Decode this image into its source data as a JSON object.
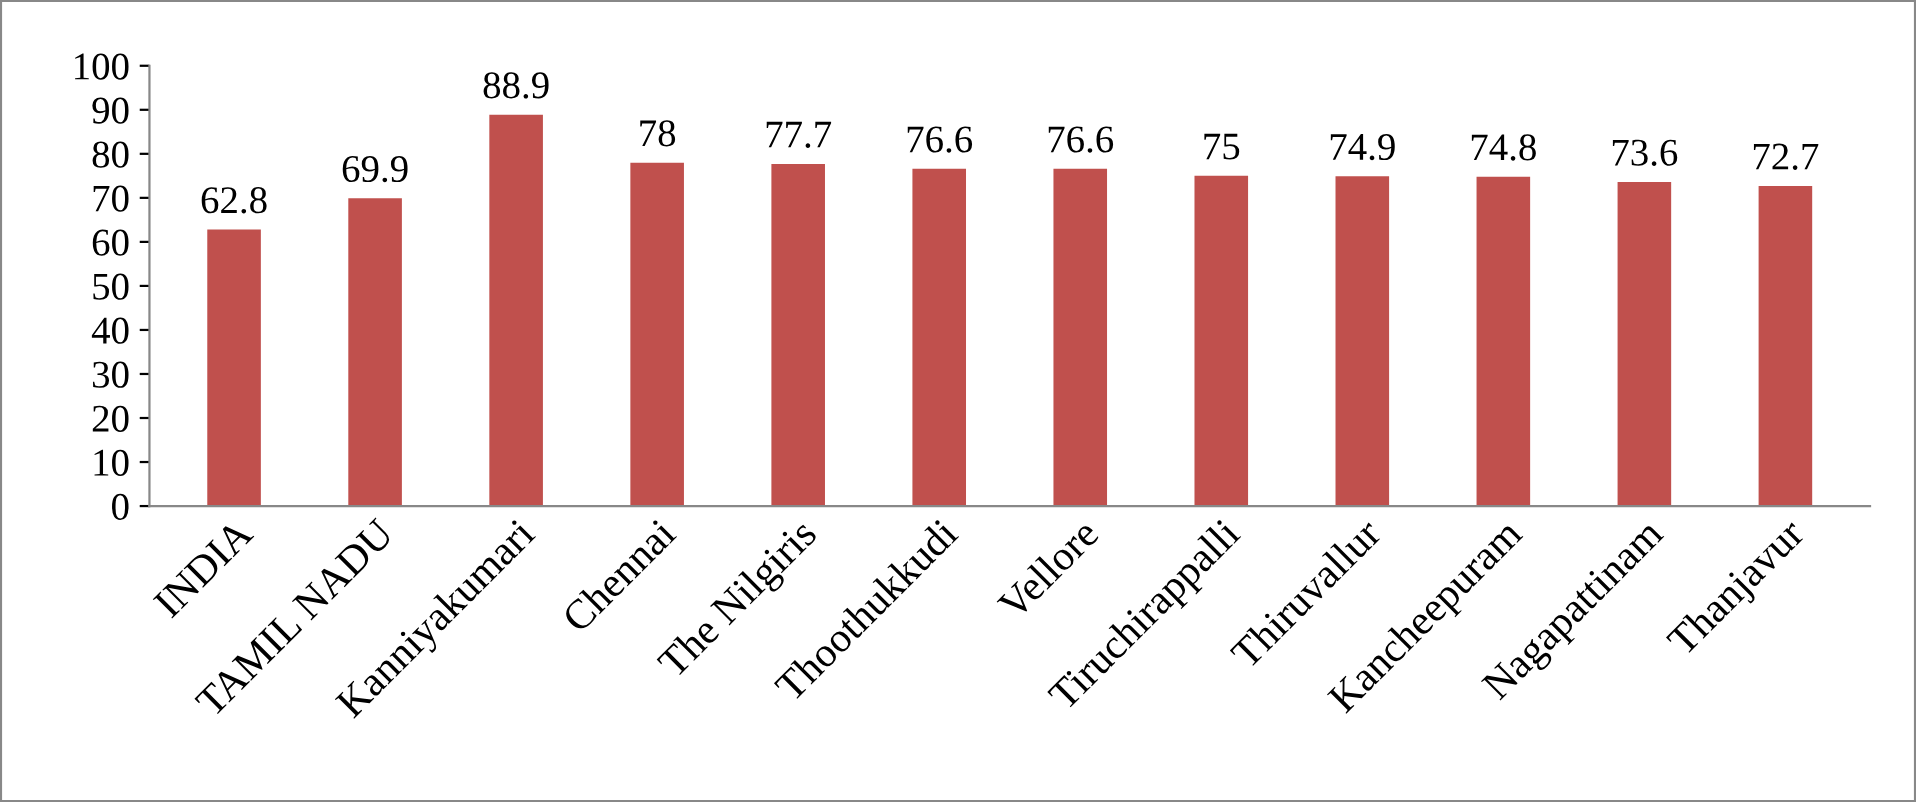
{
  "chart_data": {
    "type": "bar",
    "categories": [
      "INDIA",
      "TAMIL NADU",
      "Kanniyakumari",
      "Chennai",
      "The Nilgiris",
      "Thoothukkudi",
      "Vellore",
      "Tiruchirappalli",
      "Thiruvallur",
      "Kancheepuram",
      "Nagapattinam",
      "Thanjavur"
    ],
    "values": [
      62.8,
      69.9,
      88.9,
      78,
      77.7,
      76.6,
      76.6,
      75,
      74.9,
      74.8,
      73.6,
      72.7
    ],
    "color": "#c0504d",
    "ylim": [
      0,
      100
    ],
    "yticks": [
      0,
      10,
      20,
      30,
      40,
      50,
      60,
      70,
      80,
      90,
      100
    ],
    "grid": false,
    "data_labels": true
  }
}
